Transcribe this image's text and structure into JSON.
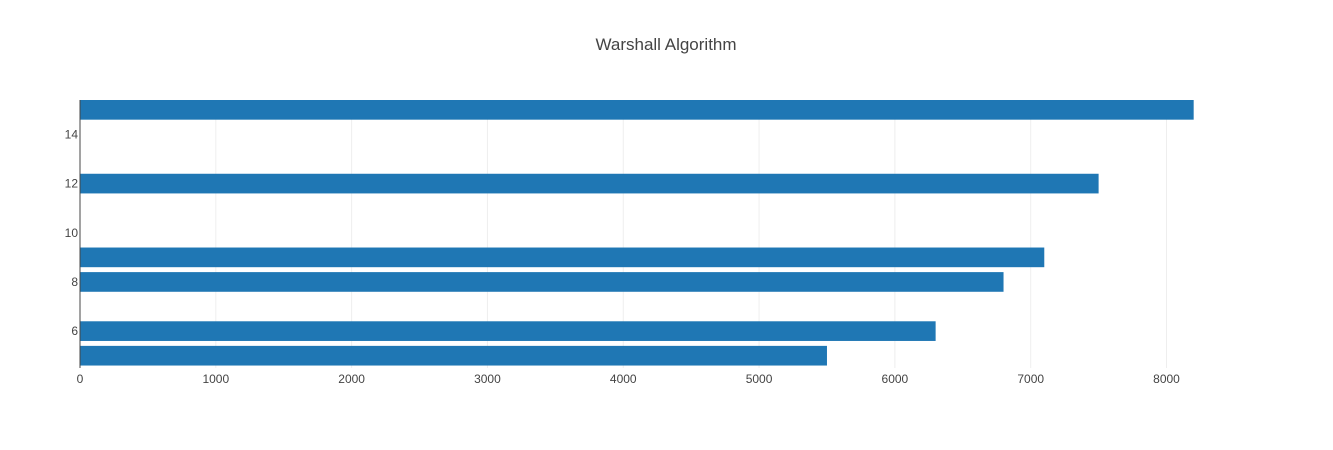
{
  "chart_data": {
    "type": "bar",
    "orientation": "horizontal",
    "title": "Warshall Algorithm",
    "xlabel": "",
    "ylabel": "",
    "xlim": [
      0,
      8600
    ],
    "ylim": [
      4.5,
      15.4
    ],
    "x_ticks": [
      0,
      1000,
      2000,
      3000,
      4000,
      5000,
      6000,
      7000,
      8000
    ],
    "y_ticks": [
      6,
      8,
      10,
      12,
      14
    ],
    "grid": true,
    "bar_color": "#1f77b4",
    "series": [
      {
        "y": [
          5,
          6,
          8,
          9,
          12,
          15
        ],
        "values": [
          5500,
          6300,
          6800,
          7100,
          7500,
          8200
        ]
      }
    ]
  }
}
